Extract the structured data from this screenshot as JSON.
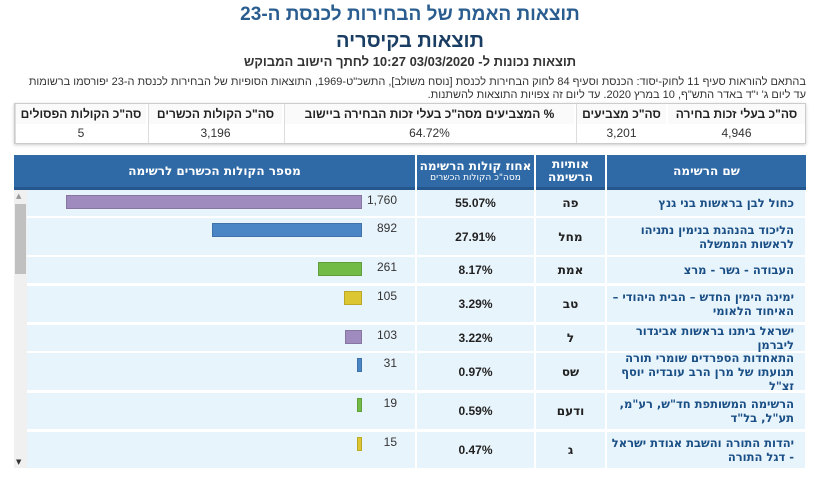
{
  "header": {
    "title": "תוצאות האמת של הבחירות לכנסת ה-23",
    "subtitle": "תוצאות בקיסריה",
    "updated": "תוצאות נכונות ל- 03/03/2020 10:27  לחתך הישוב המבוקש",
    "notice": "בהתאם להוראות סעיף 11 לחוק-יסוד: הכנסת וסעיף 84 לחוק הבחירות לכנסת [נוסח משולב], התשכ\"ט-1969, התוצאות הסופיות של הבחירות לכנסת ה-23 יפורסמו ברשומות עד ליום ג' י\"ד באדר התש\"ף, 10 במרץ 2020. עד ליום זה צפויות התוצאות להשתנות."
  },
  "summary": [
    {
      "label": "סה\"כ בעלי זכות בחירה",
      "value": "4,946"
    },
    {
      "label": "סה\"כ מצביעים",
      "value": "3,201"
    },
    {
      "label": "% המצביעים מסה\"כ בעלי זכות הבחירה ביישוב",
      "value": "64.72%"
    },
    {
      "label": "סה\"כ הקולות הכשרים",
      "value": "3,196"
    },
    {
      "label": "סה\"כ הקולות הפסולים",
      "value": "5"
    }
  ],
  "table": {
    "headers": {
      "name": "שם הרשימה",
      "letters": "אותיות הרשימה",
      "pct": "אחוז קולות הרשימה",
      "pct_sub": "מסה\"כ הקולות הכשרים",
      "votes": "מספר הקולות הכשרים לרשימה"
    },
    "max_votes": 1760,
    "rows": [
      {
        "name": "כחול לבן בראשות בני גנץ",
        "letters": "פה",
        "pct": "55.07%",
        "votes": "1,760",
        "votes_n": 1760,
        "color": "#a08bbf"
      },
      {
        "name": "הליכוד בהנהגת בנימין נתניהו לראשות הממשלה",
        "letters": "מחל",
        "pct": "27.91%",
        "votes": "892",
        "votes_n": 892,
        "color": "#4a86c6"
      },
      {
        "name": "העבודה - גשר - מרצ",
        "letters": "אמת",
        "pct": "8.17%",
        "votes": "261",
        "votes_n": 261,
        "color": "#72bb46"
      },
      {
        "name": "ימינה הימין החדש – הבית היהודי – האיחוד הלאומי",
        "letters": "טב",
        "pct": "3.29%",
        "votes": "105",
        "votes_n": 105,
        "color": "#dcc631"
      },
      {
        "name": "ישראל ביתנו בראשות אביגדור ליברמן",
        "letters": "ל",
        "pct": "3.22%",
        "votes": "103",
        "votes_n": 103,
        "color": "#a08bbf"
      },
      {
        "name": "התאחדות הספרדים שומרי תורה תנועתו של מרן הרב עובדיה יוסף זצ\"ל",
        "letters": "שס",
        "pct": "0.97%",
        "votes": "31",
        "votes_n": 31,
        "color": "#4a86c6"
      },
      {
        "name": "הרשימה המשותפת חד\"ש, רע\"מ, תע\"ל, בל\"ד",
        "letters": "ודעם",
        "pct": "0.59%",
        "votes": "19",
        "votes_n": 19,
        "color": "#72bb46"
      },
      {
        "name": "יהדות התורה והשבת אגודת ישראל - דגל התורה",
        "letters": "ג",
        "pct": "0.47%",
        "votes": "15",
        "votes_n": 15,
        "color": "#dcc631"
      }
    ]
  }
}
